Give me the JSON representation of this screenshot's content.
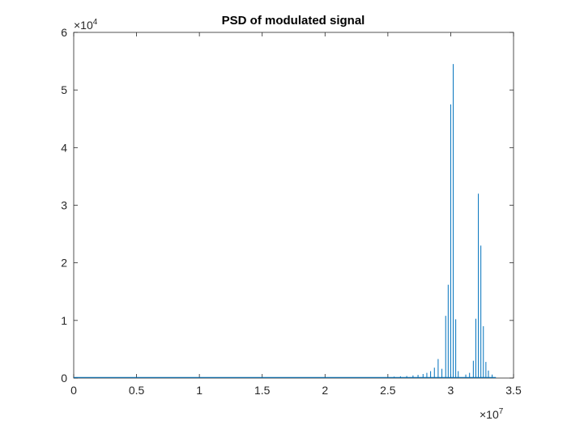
{
  "chart_data": {
    "type": "line",
    "title": "PSD of modulated signal",
    "xlabel": "",
    "ylabel": "",
    "x_exponent": {
      "base": "×10",
      "power": "7"
    },
    "y_exponent": {
      "base": "×10",
      "power": "4"
    },
    "xlim": [
      0,
      35000000
    ],
    "ylim": [
      0,
      60000
    ],
    "x_ticks": [
      0,
      5000000,
      10000000,
      15000000,
      20000000,
      25000000,
      30000000,
      35000000
    ],
    "x_tick_labels": [
      "0",
      "0.5",
      "1",
      "1.5",
      "2",
      "2.5",
      "3",
      "3.5"
    ],
    "y_ticks": [
      0,
      10000,
      20000,
      30000,
      40000,
      50000,
      60000
    ],
    "y_tick_labels": [
      "0",
      "1",
      "2",
      "3",
      "4",
      "5",
      "6"
    ],
    "grid": false,
    "series_color": "#0072BD",
    "baseline": 100,
    "series": [
      {
        "x": [
          25000000,
          25500000,
          26000000,
          26500000,
          27000000,
          27400000,
          27800000,
          28100000,
          28400000,
          28700000,
          29000000,
          29300000,
          29600000,
          29800000,
          30000000,
          30200000,
          30400000,
          30600000,
          31200000,
          31500000,
          31800000,
          32000000,
          32200000,
          32400000,
          32600000,
          32800000,
          33000000,
          33300000
        ],
        "values": [
          200,
          250,
          300,
          350,
          450,
          550,
          700,
          900,
          1200,
          1800,
          3300,
          1600,
          10800,
          16200,
          47500,
          54500,
          10200,
          1200,
          600,
          900,
          3000,
          10300,
          32000,
          23000,
          9000,
          2800,
          1300,
          600
        ]
      }
    ]
  }
}
